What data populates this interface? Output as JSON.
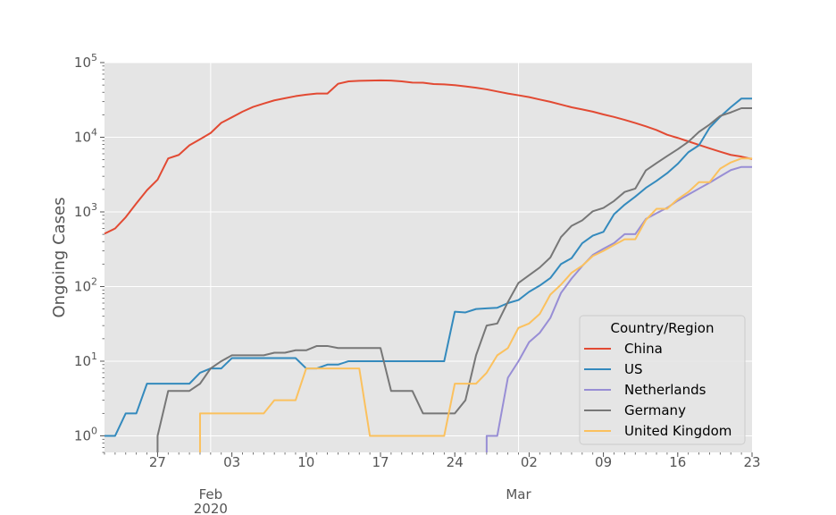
{
  "chart_data": {
    "type": "line",
    "ylabel": "Ongoing Cases",
    "yscale": "log",
    "ylim": [
      0.6,
      100000
    ],
    "y_ticks": [
      {
        "value": 1,
        "base": "10",
        "exp": "0"
      },
      {
        "value": 10,
        "base": "10",
        "exp": "1"
      },
      {
        "value": 100,
        "base": "10",
        "exp": "2"
      },
      {
        "value": 1000,
        "base": "10",
        "exp": "3"
      },
      {
        "value": 10000,
        "base": "10",
        "exp": "4"
      },
      {
        "value": 100000,
        "base": "10",
        "exp": "5"
      }
    ],
    "x_range": [
      "2020-01-22",
      "2020-03-23"
    ],
    "x_ticks": [
      {
        "date": "2020-01-27",
        "label": "27"
      },
      {
        "date": "2020-02-03",
        "label": "03"
      },
      {
        "date": "2020-02-10",
        "label": "10"
      },
      {
        "date": "2020-02-17",
        "label": "17"
      },
      {
        "date": "2020-02-24",
        "label": "24"
      },
      {
        "date": "2020-03-02",
        "label": "02"
      },
      {
        "date": "2020-03-09",
        "label": "09"
      },
      {
        "date": "2020-03-16",
        "label": "16"
      },
      {
        "date": "2020-03-23",
        "label": "23"
      }
    ],
    "x_major_labels": [
      {
        "date": "2020-02-01",
        "lines": [
          "Feb",
          "2020"
        ]
      },
      {
        "date": "2020-03-01",
        "lines": [
          "Mar"
        ]
      }
    ],
    "grid": true,
    "legend": {
      "title": "Country/Region",
      "position": "lower-right"
    },
    "series": [
      {
        "name": "China",
        "color": "#E24A33",
        "points": [
          [
            "2020-01-22",
            510
          ],
          [
            "2020-01-23",
            600
          ],
          [
            "2020-01-24",
            850
          ],
          [
            "2020-01-25",
            1300
          ],
          [
            "2020-01-26",
            1950
          ],
          [
            "2020-01-27",
            2700
          ],
          [
            "2020-01-28",
            5200
          ],
          [
            "2020-01-29",
            5800
          ],
          [
            "2020-01-30",
            7800
          ],
          [
            "2020-01-31",
            9400
          ],
          [
            "2020-02-01",
            11400
          ],
          [
            "2020-02-02",
            15600
          ],
          [
            "2020-02-03",
            18500
          ],
          [
            "2020-02-04",
            22000
          ],
          [
            "2020-02-05",
            25500
          ],
          [
            "2020-02-06",
            28300
          ],
          [
            "2020-02-07",
            31200
          ],
          [
            "2020-02-08",
            33300
          ],
          [
            "2020-02-09",
            35500
          ],
          [
            "2020-02-10",
            37200
          ],
          [
            "2020-02-11",
            38500
          ],
          [
            "2020-02-12",
            38500
          ],
          [
            "2020-02-13",
            52000
          ],
          [
            "2020-02-14",
            56000
          ],
          [
            "2020-02-15",
            57000
          ],
          [
            "2020-02-16",
            57500
          ],
          [
            "2020-02-17",
            57800
          ],
          [
            "2020-02-18",
            57500
          ],
          [
            "2020-02-19",
            56000
          ],
          [
            "2020-02-20",
            54000
          ],
          [
            "2020-02-21",
            53800
          ],
          [
            "2020-02-22",
            51600
          ],
          [
            "2020-02-23",
            51000
          ],
          [
            "2020-02-24",
            49800
          ],
          [
            "2020-02-25",
            48000
          ],
          [
            "2020-02-26",
            46000
          ],
          [
            "2020-02-27",
            43800
          ],
          [
            "2020-02-28",
            41000
          ],
          [
            "2020-02-29",
            38500
          ],
          [
            "2020-03-01",
            36500
          ],
          [
            "2020-03-02",
            34500
          ],
          [
            "2020-03-03",
            32000
          ],
          [
            "2020-03-04",
            29800
          ],
          [
            "2020-03-05",
            27400
          ],
          [
            "2020-03-06",
            25200
          ],
          [
            "2020-03-07",
            23600
          ],
          [
            "2020-03-08",
            22000
          ],
          [
            "2020-03-09",
            20200
          ],
          [
            "2020-03-10",
            18700
          ],
          [
            "2020-03-11",
            17100
          ],
          [
            "2020-03-12",
            15500
          ],
          [
            "2020-03-13",
            14000
          ],
          [
            "2020-03-14",
            12500
          ],
          [
            "2020-03-15",
            10800
          ],
          [
            "2020-03-16",
            9800
          ],
          [
            "2020-03-17",
            8800
          ],
          [
            "2020-03-18",
            7900
          ],
          [
            "2020-03-19",
            7100
          ],
          [
            "2020-03-20",
            6400
          ],
          [
            "2020-03-21",
            5800
          ],
          [
            "2020-03-22",
            5500
          ],
          [
            "2020-03-23",
            5100
          ]
        ]
      },
      {
        "name": "US",
        "color": "#348ABD",
        "points": [
          [
            "2020-01-22",
            1
          ],
          [
            "2020-01-23",
            1
          ],
          [
            "2020-01-24",
            2
          ],
          [
            "2020-01-25",
            2
          ],
          [
            "2020-01-26",
            5
          ],
          [
            "2020-01-27",
            5
          ],
          [
            "2020-01-28",
            5
          ],
          [
            "2020-01-29",
            5
          ],
          [
            "2020-01-30",
            5
          ],
          [
            "2020-01-31",
            7
          ],
          [
            "2020-02-01",
            8
          ],
          [
            "2020-02-02",
            8
          ],
          [
            "2020-02-03",
            11
          ],
          [
            "2020-02-04",
            11
          ],
          [
            "2020-02-05",
            11
          ],
          [
            "2020-02-06",
            11
          ],
          [
            "2020-02-07",
            11
          ],
          [
            "2020-02-08",
            11
          ],
          [
            "2020-02-09",
            11
          ],
          [
            "2020-02-10",
            8
          ],
          [
            "2020-02-11",
            8
          ],
          [
            "2020-02-12",
            9
          ],
          [
            "2020-02-13",
            9
          ],
          [
            "2020-02-14",
            10
          ],
          [
            "2020-02-15",
            10
          ],
          [
            "2020-02-16",
            10
          ],
          [
            "2020-02-17",
            10
          ],
          [
            "2020-02-18",
            10
          ],
          [
            "2020-02-19",
            10
          ],
          [
            "2020-02-20",
            10
          ],
          [
            "2020-02-21",
            10
          ],
          [
            "2020-02-22",
            10
          ],
          [
            "2020-02-23",
            10
          ],
          [
            "2020-02-24",
            46
          ],
          [
            "2020-02-25",
            45
          ],
          [
            "2020-02-26",
            50
          ],
          [
            "2020-02-27",
            51
          ],
          [
            "2020-02-28",
            52
          ],
          [
            "2020-02-29",
            60
          ],
          [
            "2020-03-01",
            66
          ],
          [
            "2020-03-02",
            85
          ],
          [
            "2020-03-03",
            103
          ],
          [
            "2020-03-04",
            130
          ],
          [
            "2020-03-05",
            200
          ],
          [
            "2020-03-06",
            240
          ],
          [
            "2020-03-07",
            380
          ],
          [
            "2020-03-08",
            480
          ],
          [
            "2020-03-09",
            540
          ],
          [
            "2020-03-10",
            930
          ],
          [
            "2020-03-11",
            1250
          ],
          [
            "2020-03-12",
            1600
          ],
          [
            "2020-03-13",
            2100
          ],
          [
            "2020-03-14",
            2600
          ],
          [
            "2020-03-15",
            3300
          ],
          [
            "2020-03-16",
            4400
          ],
          [
            "2020-03-17",
            6300
          ],
          [
            "2020-03-18",
            7800
          ],
          [
            "2020-03-19",
            13400
          ],
          [
            "2020-03-20",
            18800
          ],
          [
            "2020-03-21",
            25300
          ],
          [
            "2020-03-22",
            33000
          ],
          [
            "2020-03-23",
            33000
          ]
        ]
      },
      {
        "name": "Netherlands",
        "color": "#988ED5",
        "points": [
          [
            "2020-02-27",
            0.6
          ],
          [
            "2020-02-27",
            1
          ],
          [
            "2020-02-28",
            1
          ],
          [
            "2020-02-29",
            6
          ],
          [
            "2020-03-01",
            10
          ],
          [
            "2020-03-02",
            18
          ],
          [
            "2020-03-03",
            24
          ],
          [
            "2020-03-04",
            38
          ],
          [
            "2020-03-05",
            82
          ],
          [
            "2020-03-06",
            128
          ],
          [
            "2020-03-07",
            188
          ],
          [
            "2020-03-08",
            265
          ],
          [
            "2020-03-09",
            321
          ],
          [
            "2020-03-10",
            382
          ],
          [
            "2020-03-11",
            503
          ],
          [
            "2020-03-12",
            503
          ],
          [
            "2020-03-13",
            804
          ],
          [
            "2020-03-14",
            959
          ],
          [
            "2020-03-15",
            1135
          ],
          [
            "2020-03-16",
            1413
          ],
          [
            "2020-03-17",
            1705
          ],
          [
            "2020-03-18",
            2051
          ],
          [
            "2020-03-19",
            2460
          ],
          [
            "2020-03-20",
            2994
          ],
          [
            "2020-03-21",
            3631
          ],
          [
            "2020-03-22",
            4000
          ],
          [
            "2020-03-23",
            4000
          ]
        ]
      },
      {
        "name": "Germany",
        "color": "#777777",
        "points": [
          [
            "2020-01-27",
            0.6
          ],
          [
            "2020-01-27",
            1
          ],
          [
            "2020-01-28",
            4
          ],
          [
            "2020-01-29",
            4
          ],
          [
            "2020-01-30",
            4
          ],
          [
            "2020-01-31",
            5
          ],
          [
            "2020-02-01",
            8
          ],
          [
            "2020-02-02",
            10
          ],
          [
            "2020-02-03",
            12
          ],
          [
            "2020-02-04",
            12
          ],
          [
            "2020-02-05",
            12
          ],
          [
            "2020-02-06",
            12
          ],
          [
            "2020-02-07",
            13
          ],
          [
            "2020-02-08",
            13
          ],
          [
            "2020-02-09",
            14
          ],
          [
            "2020-02-10",
            14
          ],
          [
            "2020-02-11",
            16
          ],
          [
            "2020-02-12",
            16
          ],
          [
            "2020-02-13",
            15
          ],
          [
            "2020-02-14",
            15
          ],
          [
            "2020-02-15",
            15
          ],
          [
            "2020-02-16",
            15
          ],
          [
            "2020-02-17",
            15
          ],
          [
            "2020-02-18",
            4
          ],
          [
            "2020-02-19",
            4
          ],
          [
            "2020-02-20",
            4
          ],
          [
            "2020-02-21",
            2
          ],
          [
            "2020-02-22",
            2
          ],
          [
            "2020-02-23",
            2
          ],
          [
            "2020-02-24",
            2
          ],
          [
            "2020-02-25",
            3
          ],
          [
            "2020-02-26",
            12
          ],
          [
            "2020-02-27",
            30
          ],
          [
            "2020-02-28",
            32
          ],
          [
            "2020-02-29",
            62
          ],
          [
            "2020-03-01",
            112
          ],
          [
            "2020-03-02",
            142
          ],
          [
            "2020-03-03",
            180
          ],
          [
            "2020-03-04",
            245
          ],
          [
            "2020-03-05",
            460
          ],
          [
            "2020-03-06",
            650
          ],
          [
            "2020-03-07",
            770
          ],
          [
            "2020-03-08",
            1020
          ],
          [
            "2020-03-09",
            1130
          ],
          [
            "2020-03-10",
            1400
          ],
          [
            "2020-03-11",
            1850
          ],
          [
            "2020-03-12",
            2050
          ],
          [
            "2020-03-13",
            3600
          ],
          [
            "2020-03-14",
            4500
          ],
          [
            "2020-03-15",
            5600
          ],
          [
            "2020-03-16",
            6900
          ],
          [
            "2020-03-17",
            8700
          ],
          [
            "2020-03-18",
            11800
          ],
          [
            "2020-03-19",
            14800
          ],
          [
            "2020-03-20",
            19300
          ],
          [
            "2020-03-21",
            21500
          ],
          [
            "2020-03-22",
            24500
          ],
          [
            "2020-03-23",
            24500
          ]
        ]
      },
      {
        "name": "United Kingdom",
        "color": "#FBC15E",
        "points": [
          [
            "2020-01-31",
            0.6
          ],
          [
            "2020-01-31",
            2
          ],
          [
            "2020-02-01",
            2
          ],
          [
            "2020-02-02",
            2
          ],
          [
            "2020-02-03",
            2
          ],
          [
            "2020-02-04",
            2
          ],
          [
            "2020-02-05",
            2
          ],
          [
            "2020-02-06",
            2
          ],
          [
            "2020-02-07",
            3
          ],
          [
            "2020-02-08",
            3
          ],
          [
            "2020-02-09",
            3
          ],
          [
            "2020-02-10",
            8
          ],
          [
            "2020-02-11",
            8
          ],
          [
            "2020-02-12",
            8
          ],
          [
            "2020-02-13",
            8
          ],
          [
            "2020-02-14",
            8
          ],
          [
            "2020-02-15",
            8
          ],
          [
            "2020-02-16",
            1
          ],
          [
            "2020-02-17",
            1
          ],
          [
            "2020-02-18",
            1
          ],
          [
            "2020-02-19",
            1
          ],
          [
            "2020-02-20",
            1
          ],
          [
            "2020-02-21",
            1
          ],
          [
            "2020-02-22",
            1
          ],
          [
            "2020-02-23",
            1
          ],
          [
            "2020-02-24",
            5
          ],
          [
            "2020-02-25",
            5
          ],
          [
            "2020-02-26",
            5
          ],
          [
            "2020-02-27",
            7
          ],
          [
            "2020-02-28",
            12
          ],
          [
            "2020-02-29",
            15
          ],
          [
            "2020-03-01",
            28
          ],
          [
            "2020-03-02",
            32
          ],
          [
            "2020-03-03",
            43
          ],
          [
            "2020-03-04",
            78
          ],
          [
            "2020-03-05",
            106
          ],
          [
            "2020-03-06",
            153
          ],
          [
            "2020-03-07",
            190
          ],
          [
            "2020-03-08",
            256
          ],
          [
            "2020-03-09",
            300
          ],
          [
            "2020-03-10",
            360
          ],
          [
            "2020-03-11",
            430
          ],
          [
            "2020-03-12",
            430
          ],
          [
            "2020-03-13",
            780
          ],
          [
            "2020-03-14",
            1100
          ],
          [
            "2020-03-15",
            1100
          ],
          [
            "2020-03-16",
            1480
          ],
          [
            "2020-03-17",
            1850
          ],
          [
            "2020-03-18",
            2500
          ],
          [
            "2020-03-19",
            2500
          ],
          [
            "2020-03-20",
            3800
          ],
          [
            "2020-03-21",
            4600
          ],
          [
            "2020-03-22",
            5200
          ],
          [
            "2020-03-23",
            5200
          ]
        ]
      }
    ]
  }
}
